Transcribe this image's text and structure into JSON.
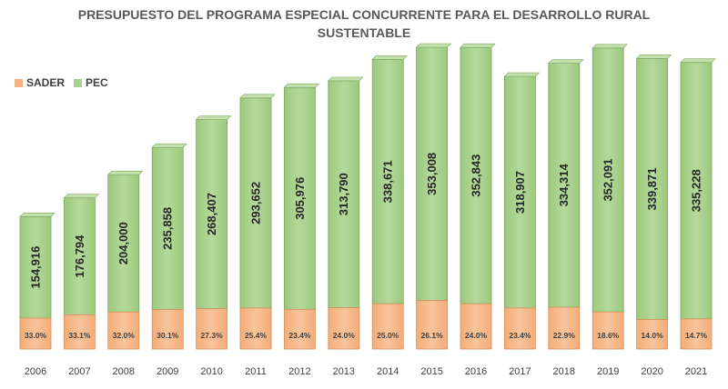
{
  "chart_data": {
    "type": "bar",
    "stacked": true,
    "title_line1": "PRESUPUESTO DEL PROGRAMA ESPECIAL CONCURRENTE PARA EL DESARROLLO RURAL",
    "title_line2": "SUSTENTABLE",
    "xlabel": "",
    "ylabel": "",
    "categories": [
      "2006",
      "2007",
      "2008",
      "2009",
      "2010",
      "2011",
      "2012",
      "2013",
      "2014",
      "2015",
      "2016",
      "2017",
      "2018",
      "2019",
      "2020",
      "2021"
    ],
    "pec_values": [
      154916,
      176794,
      204000,
      235858,
      268407,
      293652,
      305976,
      313790,
      338671,
      353008,
      352843,
      318907,
      334314,
      352091,
      339871,
      335228
    ],
    "pec_labels": [
      "154,916",
      "176,794",
      "204,000",
      "235,858",
      "268,407",
      "293,652",
      "305,976",
      "313,790",
      "338,671",
      "353,008",
      "352,843",
      "318,907",
      "334,314",
      "352,091",
      "339,871",
      "335,228"
    ],
    "sader_share_pct": [
      33.0,
      33.1,
      32.0,
      30.1,
      27.3,
      25.4,
      23.4,
      24.0,
      25.0,
      26.1,
      24.0,
      23.4,
      22.9,
      18.6,
      14.0,
      14.7
    ],
    "sader_labels": [
      "33.0%",
      "33.1%",
      "32.0%",
      "30.1%",
      "27.3%",
      "25.4%",
      "23.4%",
      "24.0%",
      "25.0%",
      "26.1%",
      "24.0%",
      "23.4%",
      "22.9%",
      "18.6%",
      "14.0%",
      "14.7%"
    ],
    "legend": {
      "position": "top-left",
      "items": [
        {
          "name": "SADER",
          "color": "#f4b183"
        },
        {
          "name": "PEC",
          "color": "#a9d18e"
        }
      ]
    },
    "grid": false
  }
}
